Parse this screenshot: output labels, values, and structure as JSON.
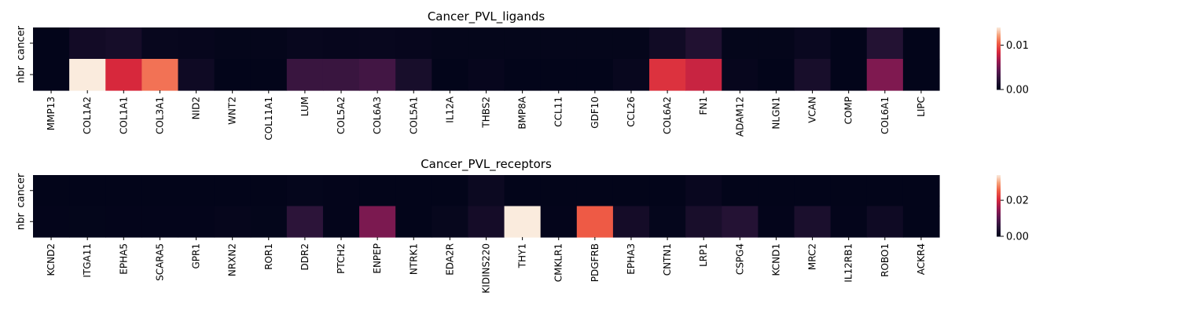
{
  "colormap": "rocket",
  "chart_data": [
    {
      "type": "heatmap",
      "title": "Cancer_PVL_ligands",
      "rows": [
        "cancer",
        "nbr"
      ],
      "columns": [
        "MMP13",
        "COL1A2",
        "COL1A1",
        "COL3A1",
        "NID2",
        "WNT2",
        "COL11A1",
        "LUM",
        "COL5A2",
        "COL6A3",
        "COL5A1",
        "IL12A",
        "THBS2",
        "BMP8A",
        "CCL11",
        "GDF10",
        "CCL26",
        "COL6A2",
        "FN1",
        "ADAM12",
        "NLGN1",
        "VCAN",
        "COMP",
        "COL6A1",
        "LIPC"
      ],
      "values": [
        [
          0.0,
          0.0009,
          0.0011,
          0.0003,
          0.0002,
          0.0001,
          0.0001,
          0.0003,
          0.0002,
          0.0003,
          0.0002,
          0.0001,
          0.0001,
          0.0001,
          0.0001,
          0.0001,
          0.0001,
          0.0008,
          0.0017,
          0.0001,
          0.0001,
          0.0004,
          0.0,
          0.0018,
          0.0
        ],
        [
          0.0,
          0.014,
          0.0084,
          0.011,
          0.0007,
          0.0,
          0.0,
          0.0028,
          0.0028,
          0.0032,
          0.0012,
          0.0,
          0.0002,
          0.0,
          0.0,
          0.0,
          0.0003,
          0.0088,
          0.0079,
          0.0002,
          0.0,
          0.0012,
          0.0,
          0.0055,
          0.0
        ]
      ],
      "colorbar": {
        "min": 0.0,
        "max": 0.014,
        "ticks": [
          0.0,
          0.01
        ],
        "tick_labels": [
          "0.00",
          "0.01"
        ]
      }
    },
    {
      "type": "heatmap",
      "title": "Cancer_PVL_receptors",
      "rows": [
        "cancer",
        "nbr"
      ],
      "columns": [
        "KCND2",
        "ITGA11",
        "EPHA5",
        "SCARA5",
        "GPR1",
        "NRXN2",
        "ROR1",
        "DDR2",
        "PTCH2",
        "ENPEP",
        "NTRK1",
        "EDA2R",
        "KIDINS220",
        "THY1",
        "CMKLR1",
        "PDGFRB",
        "EPHA3",
        "CNTN1",
        "LRP1",
        "CSPG4",
        "KCND1",
        "MRC2",
        "IL12RB1",
        "ROBO1",
        "ACKR4"
      ],
      "values": [
        [
          0.0,
          0.0,
          0.0,
          0.0,
          0.0,
          0.0,
          0.0,
          0.0003,
          0.0001,
          0.0,
          0.0,
          0.0,
          0.0012,
          0.0,
          0.0,
          0.0,
          0.0,
          0.0,
          0.0008,
          0.0,
          0.0,
          0.0,
          0.0,
          0.0,
          0.0
        ],
        [
          0.0001,
          0.0002,
          0.0001,
          0.0001,
          0.0001,
          0.0004,
          0.0002,
          0.0055,
          0.0001,
          0.013,
          0.0,
          0.0006,
          0.0025,
          0.034,
          0.0001,
          0.025,
          0.0025,
          0.0003,
          0.003,
          0.0045,
          0.0001,
          0.0033,
          0.0001,
          0.0017,
          0.0
        ]
      ],
      "colorbar": {
        "min": 0.0,
        "max": 0.034,
        "ticks": [
          0.0,
          0.02
        ],
        "tick_labels": [
          "0.00",
          "0.02"
        ]
      }
    }
  ]
}
